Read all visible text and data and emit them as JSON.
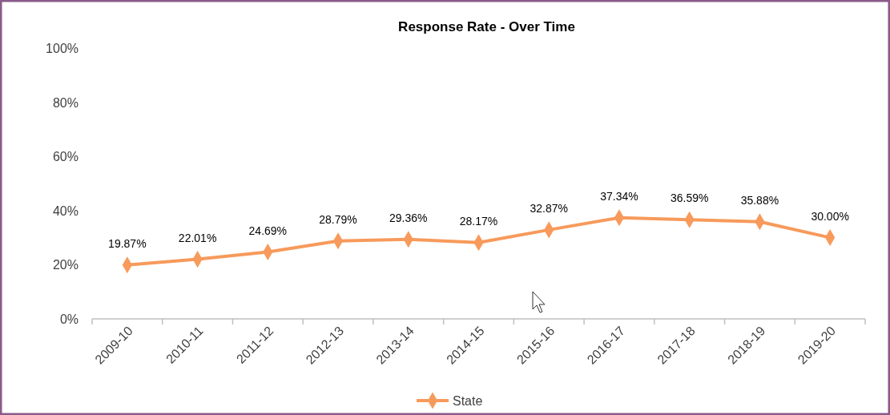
{
  "chart_data": {
    "type": "line",
    "title": "Response Rate - Over Time",
    "categories": [
      "2009-10",
      "2010-11",
      "2011-12",
      "2012-13",
      "2013-14",
      "2014-15",
      "2015-16",
      "2016-17",
      "2017-18",
      "2018-19",
      "2019-20"
    ],
    "series": [
      {
        "name": "State",
        "color": "#f79a5b",
        "values": [
          19.87,
          22.01,
          24.69,
          28.79,
          29.36,
          28.17,
          32.87,
          37.34,
          36.59,
          35.88,
          30.0
        ],
        "value_labels": [
          "19.87%",
          "22.01%",
          "24.69%",
          "28.79%",
          "29.36%",
          "28.17%",
          "32.87%",
          "37.34%",
          "36.59%",
          "35.88%",
          "30.00%"
        ]
      }
    ],
    "ylim": [
      0,
      100
    ],
    "yticks": [
      {
        "value": 0,
        "label": "0%"
      },
      {
        "value": 20,
        "label": "20%"
      },
      {
        "value": 40,
        "label": "40%"
      },
      {
        "value": 60,
        "label": "60%"
      },
      {
        "value": 80,
        "label": "80%"
      },
      {
        "value": 100,
        "label": "100%"
      }
    ],
    "grid": false,
    "legend": "bottom",
    "marker": "diamond",
    "line_style": "solid"
  }
}
